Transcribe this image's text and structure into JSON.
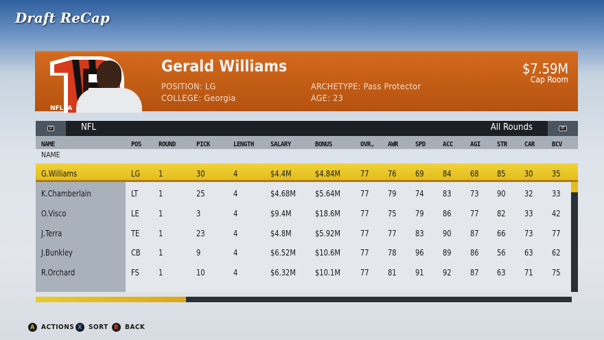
{
  "title": "Draft ReCap",
  "player": {
    "name": "Gerald Williams",
    "position_label": "POSITION:",
    "position": "LG",
    "college_label": "COLLEGE:",
    "college": "Georgia",
    "archetype_label": "ARCHETYPE:",
    "archetype": "Pass Protector",
    "age_label": "AGE:",
    "age": "23",
    "logo_text": "NFLPA"
  },
  "cap": {
    "value": "$7.59M",
    "label": "Cap Room"
  },
  "filter": {
    "left_bumper": "LT",
    "league": "NFL",
    "rounds": "All Rounds",
    "right_bumper": "RT"
  },
  "columns": [
    "NAME",
    "POS",
    "ROUND",
    "PICK",
    "LENGTH",
    "SALARY",
    "BONUS",
    "OVR",
    "AWR",
    "SPD",
    "ACC",
    "AGI",
    "STR",
    "CAR",
    "BCV"
  ],
  "sort_column": "OVR",
  "group_label": "NAME",
  "rows": [
    [
      "G.Williams",
      "LG",
      "1",
      "30",
      "4",
      "$4.4M",
      "$4.84M",
      "77",
      "76",
      "69",
      "84",
      "68",
      "85",
      "30",
      "35"
    ],
    [
      "K.Chamberlain",
      "LT",
      "1",
      "25",
      "4",
      "$4.68M",
      "$5.64M",
      "77",
      "79",
      "74",
      "83",
      "73",
      "90",
      "32",
      "33"
    ],
    [
      "O.Visco",
      "LE",
      "1",
      "3",
      "4",
      "$9.4M",
      "$18.6M",
      "77",
      "75",
      "79",
      "86",
      "77",
      "82",
      "33",
      "42"
    ],
    [
      "J.Terra",
      "TE",
      "1",
      "23",
      "4",
      "$4.8M",
      "$5.92M",
      "77",
      "77",
      "83",
      "90",
      "87",
      "66",
      "73",
      "77"
    ],
    [
      "J.Bunkley",
      "CB",
      "1",
      "9",
      "4",
      "$6.52M",
      "$10.6M",
      "77",
      "78",
      "96",
      "89",
      "86",
      "56",
      "63",
      "62"
    ],
    [
      "R.Orchard",
      "FS",
      "1",
      "10",
      "4",
      "$6.32M",
      "$10.1M",
      "77",
      "81",
      "91",
      "92",
      "87",
      "63",
      "71",
      "75"
    ]
  ],
  "selected_row": 0,
  "scroll_progress": 0.28,
  "colors": {
    "accent": "#e3bd1c",
    "banner": "#c55e17"
  },
  "buttons": [
    {
      "glyph": "A",
      "label": "ACTIONS",
      "color": "#c8b43a"
    },
    {
      "glyph": "X",
      "label": "SORT",
      "color": "#4a8fe0"
    },
    {
      "glyph": "B",
      "label": "BACK",
      "color": "#e0402a"
    }
  ]
}
